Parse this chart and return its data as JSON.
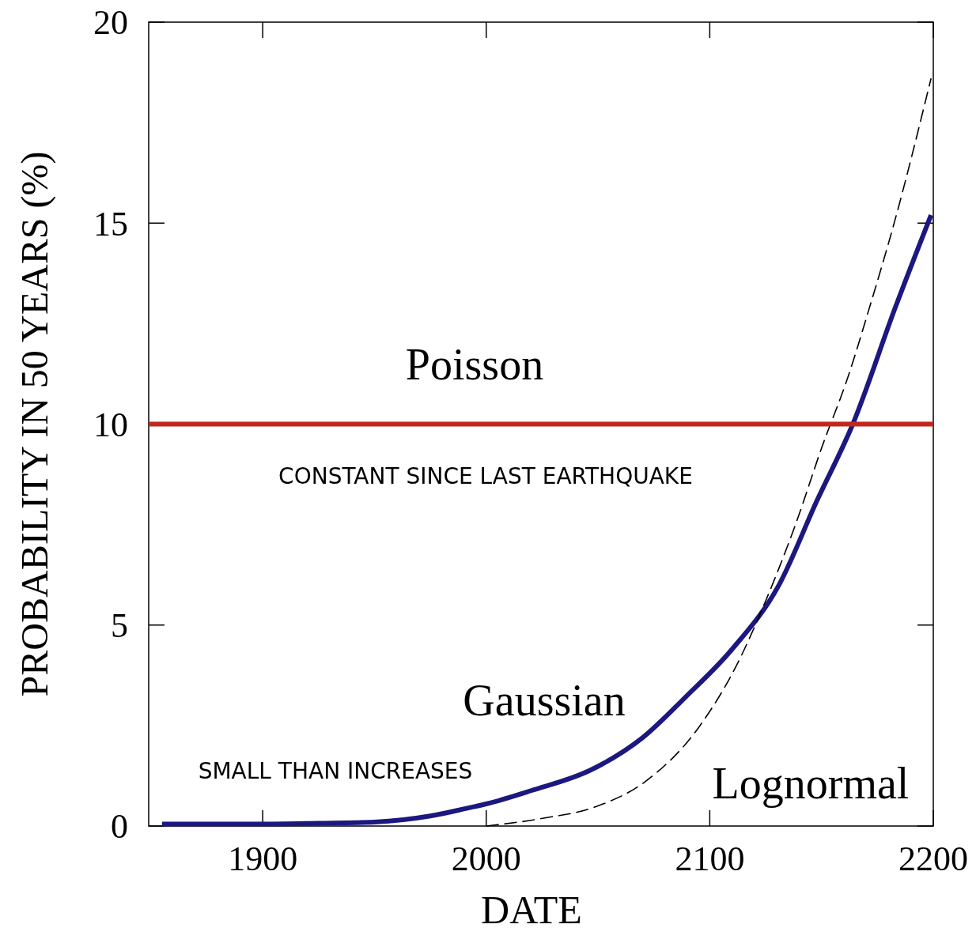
{
  "chart_data": {
    "type": "line",
    "xlabel": "DATE",
    "ylabel": "PROBABILITY IN 50 YEARS (%)",
    "xlim": [
      1849,
      2200
    ],
    "ylim": [
      0,
      20
    ],
    "xticks": [
      1900,
      2000,
      2100,
      2200
    ],
    "yticks": [
      0,
      5,
      10,
      15,
      20
    ],
    "grid": false,
    "marker": "none",
    "series": [
      {
        "name": "Poisson",
        "color": "#c0281c",
        "line_style": "solid",
        "x": [
          1849,
          2200
        ],
        "values": [
          10,
          10
        ]
      },
      {
        "name": "Gaussian",
        "color": "#1c1880",
        "line_style": "solid",
        "x": [
          1855,
          1900,
          1925,
          1950,
          1975,
          1992,
          2000,
          2020,
          2047,
          2070,
          2089,
          2110,
          2131,
          2148,
          2164,
          2183,
          2199
        ],
        "values": [
          0.05,
          0.05,
          0.07,
          0.1,
          0.25,
          0.45,
          0.55,
          0.88,
          1.4,
          2.2,
          3.2,
          4.4,
          6.0,
          8.1,
          10.0,
          12.9,
          15.2
        ]
      },
      {
        "name": "Lognormal",
        "color": "#000000",
        "line_style": "dashed",
        "x": [
          2000,
          2024,
          2050,
          2071,
          2095,
          2112,
          2125,
          2139,
          2150,
          2162,
          2172,
          2182,
          2199
        ],
        "values": [
          0,
          0.18,
          0.5,
          1.1,
          2.45,
          4.0,
          5.6,
          7.6,
          9.4,
          11.2,
          13.0,
          14.9,
          18.6
        ]
      }
    ],
    "annotations": [
      "CONSTANT SINCE LAST EARTHQUAKE",
      "SMALL THAN INCREASES"
    ]
  }
}
